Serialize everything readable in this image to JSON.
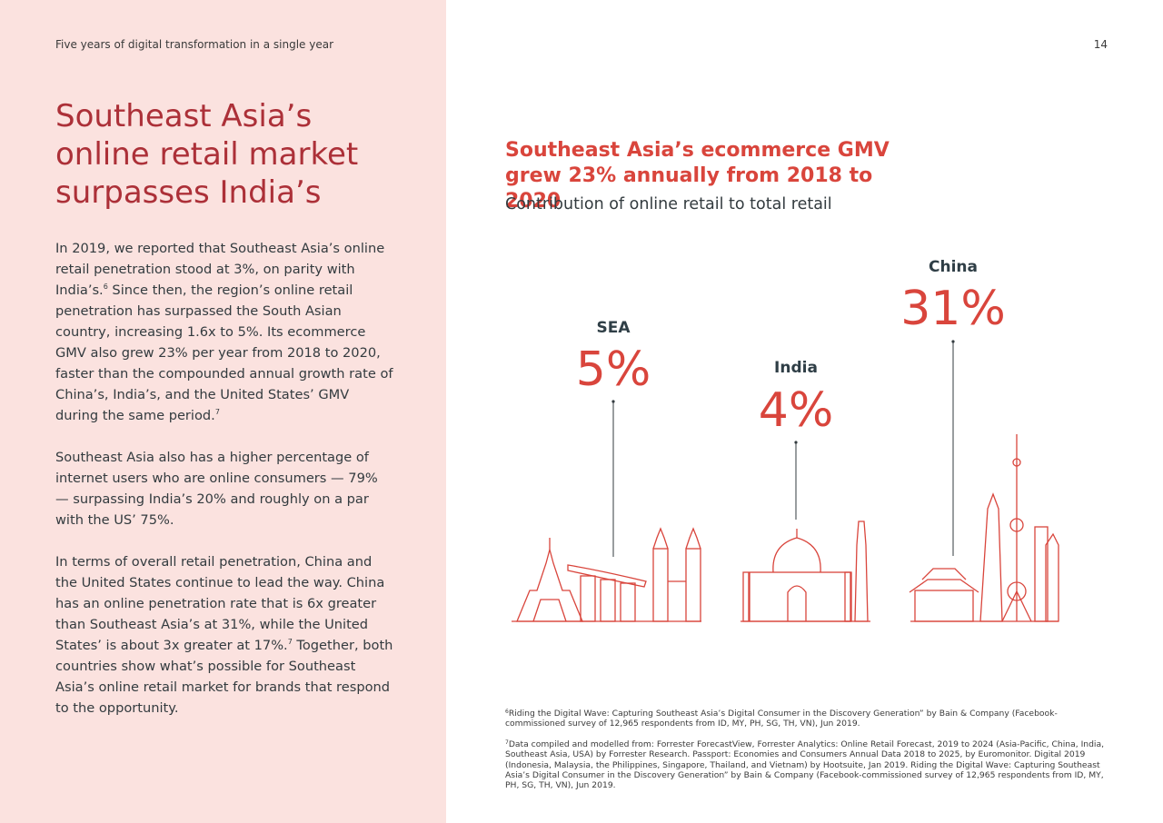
{
  "header": {
    "running_title": "Five years of digital transformation in a single year",
    "page_number": "14"
  },
  "article": {
    "title": "Southeast Asia’s online retail market surpasses India’s",
    "paragraphs": [
      [
        {
          "text": "In 2019, we reported that Southeast Asia’s online retail penetration stood at 3%, on parity with India’s."
        },
        {
          "note": "6"
        },
        {
          "text": " Since then, the region’s online retail penetration has surpassed the South Asian country, increasing 1.6x to 5%. Its ecommerce GMV also grew 23% per year from 2018 to 2020, faster than the compounded annual growth rate of China’s, India’s, and the United States’ GMV during the same period."
        },
        {
          "note": "7"
        }
      ],
      [
        {
          "text": "Southeast Asia also has a higher percentage of internet users who are online consumers — 79% — surpassing India’s 20% and roughly on a par with the US’ 75%."
        }
      ],
      [
        {
          "text": "In terms of overall retail penetration, China and the United States continue to lead the way. China has an online penetration rate that is 6x greater than Southeast Asia’s at 31%, while the United States’ is about 3x greater at 17%."
        },
        {
          "note": "7"
        },
        {
          "text": " Together, both countries show what’s possible for Southeast Asia’s online retail market for brands that respond to the opportunity."
        }
      ]
    ]
  },
  "figure": {
    "title": "Southeast Asia’s ecommerce GMV grew 23% annually from 2018 to 2020",
    "subtitle": "Contribution of online retail to total retail",
    "items": [
      {
        "label": "SEA",
        "value": "5%"
      },
      {
        "label": "India",
        "value": "4%"
      },
      {
        "label": "China",
        "value": "31%"
      }
    ]
  },
  "footnotes": [
    {
      "ref": "6",
      "text": "Riding the Digital Wave: Capturing Southeast Asia’s Digital Consumer in the Discovery Generation” by Bain & Company (Facebook-commissioned survey of 12,965 respondents from ID, MY, PH, SG, TH, VN), Jun 2019."
    },
    {
      "ref": "7",
      "text": "Data compiled and modelled from: Forrester ForecastView, Forrester Analytics: Online Retail Forecast, 2019 to 2024 (Asia-Pacific, China, India, Southeast Asia, USA) by Forrester Research. Passport: Economies and Consumers Annual Data 2018 to 2025, by Euromonitor. Digital 2019 (Indonesia, Malaysia, the Philippines, Singapore, Thailand, and Vietnam) by Hootsuite, Jan 2019. Riding the Digital Wave: Capturing Southeast Asia’s Digital Consumer in the Discovery Generation” by Bain & Company (Facebook-commissioned survey of 12,965 respondents from ID, MY, PH, SG, TH, VN), Jun 2019."
    }
  ]
}
